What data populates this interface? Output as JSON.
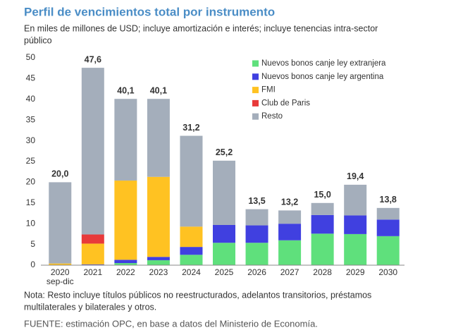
{
  "chart_data": {
    "type": "stacked-bar",
    "title": "Perfil de vencimientos total por instrumento",
    "subtitle": [
      "En miles de millones de USD; incluye amortización e interés; incluye tenencias intra-sector",
      "público"
    ],
    "categories": [
      "2020",
      "2021",
      "2022",
      "2023",
      "2024",
      "2025",
      "2026",
      "2027",
      "2028",
      "2029",
      "2030"
    ],
    "category_sublabels": [
      "sep-dic",
      null,
      null,
      null,
      null,
      null,
      null,
      null,
      null,
      null,
      null
    ],
    "series": [
      {
        "name": "Nuevos bonos canje ley extranjera",
        "color": "#5fe07c",
        "values": [
          0,
          0,
          0.5,
          1.2,
          2.5,
          5.4,
          5.4,
          6.0,
          7.6,
          7.5,
          7.0
        ]
      },
      {
        "name": "Nuevos bonos canje ley argentina",
        "color": "#4040e0",
        "values": [
          0,
          0.2,
          0.8,
          0.8,
          1.9,
          4.3,
          4.2,
          4.0,
          4.5,
          4.5,
          4.0
        ]
      },
      {
        "name": "FMI",
        "color": "#ffc222",
        "values": [
          0.4,
          5.0,
          19.1,
          19.3,
          4.9,
          0,
          0,
          0,
          0,
          0,
          0
        ]
      },
      {
        "name": "Club de Paris",
        "color": "#e83a3a",
        "values": [
          0,
          2.2,
          0,
          0,
          0,
          0,
          0,
          0,
          0,
          0,
          0
        ]
      },
      {
        "name": "Resto",
        "color": "#a4aebb",
        "values": [
          19.6,
          40.2,
          19.7,
          18.8,
          21.9,
          15.5,
          3.9,
          3.2,
          2.9,
          7.4,
          2.8
        ]
      }
    ],
    "totals": {
      "values": [
        20.0,
        47.6,
        40.1,
        40.1,
        31.2,
        25.2,
        13.5,
        13.2,
        15.0,
        19.4,
        13.8
      ],
      "value_labels": [
        "20,0",
        "47,6",
        "40,1",
        "40,1",
        "31,2",
        "25,2",
        "13,5",
        "13,2",
        "15,0",
        "19,4",
        "13,8"
      ]
    },
    "ylim": [
      0,
      50
    ],
    "yticks": [
      0,
      5,
      10,
      15,
      20,
      25,
      30,
      35,
      40,
      45,
      50
    ],
    "note": [
      "Nota: Resto incluye títulos públicos no reestructurados, adelantos transitorios, préstamos",
      "multilaterales y bilaterales y otros."
    ],
    "source": "FUENTE: estimación OPC, en base a datos del Ministerio de Economía."
  }
}
